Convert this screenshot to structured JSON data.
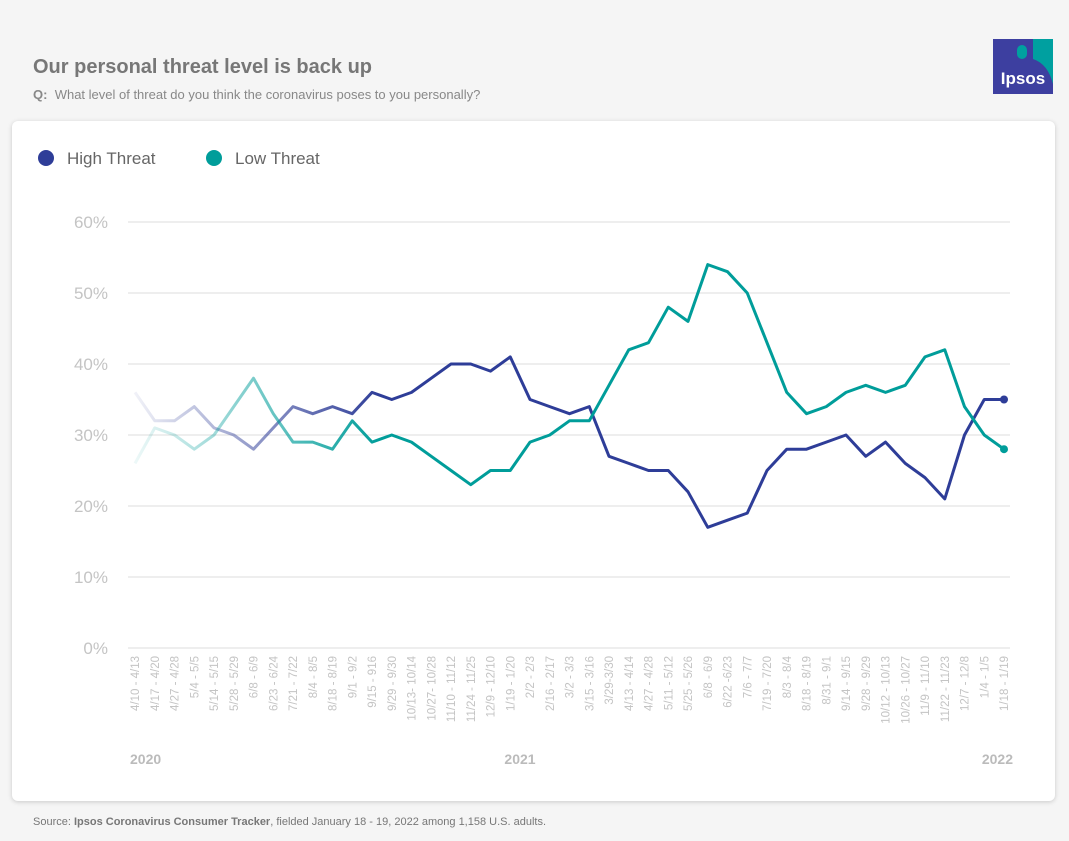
{
  "header": {
    "title": "Our personal threat level is back up",
    "q_label": "Q:",
    "question": "What level of threat do you think the coronavirus poses to you personally?"
  },
  "logo": {
    "text": "Ipsos",
    "colors": {
      "primary": "#3d3fa0",
      "accent": "#00a0a0"
    }
  },
  "source": {
    "label": "Source:",
    "name": "Ipsos Coronavirus Consumer Tracker",
    "rest": ", fielded January 18 - 19, 2022 among 1,158 U.S. adults."
  },
  "chart_data": {
    "type": "line",
    "title": "",
    "ylim": [
      0,
      60
    ],
    "yticks": [
      "0%",
      "10%",
      "20%",
      "30%",
      "40%",
      "50%",
      "60%"
    ],
    "grid": true,
    "legend_placement": "top-left",
    "year_labels": [
      "2020",
      "2021",
      "2022"
    ],
    "categories": [
      "4/10 - 4/13",
      "4/17 - 4/20",
      "4/27 - 4/28",
      "5/4 - 5/5",
      "5/14 - 5/15",
      "5/28 - 5/29",
      "6/8 - 6/9",
      "6/23 - 6/24",
      "7/21 - 7/22",
      "8/4 - 8/5",
      "8/18 - 8/19",
      "9/1 - 9/2",
      "9/15 - 916",
      "9/29 - 9/30",
      "10/13- 10/14",
      "10/27- 10/28",
      "11/10 - 11/12",
      "11/24 - 11/25",
      "12/9 - 12/10",
      "1/19 - 1/20",
      "2/2 - 2/3",
      "2/16 - 2/17",
      "3/2 - 3/3",
      "3/15 - 3/16",
      "3/29-3/30",
      "4/13 - 4/14",
      "4/27 - 4/28",
      "5/11 - 5/12",
      "5/25 - 5/26",
      "6/8 - 6/9",
      "6/22 -6/23",
      "7/6 - 7/7",
      "7/19 - 7/20",
      "8/3 - 8/4",
      "8/18 - 8/19",
      "8/31 - 9/1",
      "9/14 - 9/15",
      "9/28 - 9/29",
      "10/12 - 10/13",
      "10/26 - 10/27",
      "11/9 - 11/10",
      "11/22 - 11/23",
      "12/7 - 12/8",
      "1/4 - 1/5",
      "1/18 - 1/19"
    ],
    "series": [
      {
        "name": "High Threat",
        "color": "#2e3d98",
        "values": [
          36,
          32,
          32,
          34,
          31,
          30,
          28,
          31,
          34,
          33,
          34,
          33,
          36,
          35,
          36,
          38,
          40,
          40,
          39,
          41,
          35,
          34,
          33,
          34,
          27,
          26,
          25,
          25,
          22,
          17,
          18,
          19,
          25,
          28,
          28,
          29,
          30,
          27,
          29,
          26,
          24,
          21,
          30,
          35,
          35
        ]
      },
      {
        "name": "Low Threat",
        "color": "#009d9a",
        "values": [
          26,
          31,
          30,
          28,
          30,
          34,
          38,
          33,
          29,
          29,
          28,
          32,
          29,
          30,
          29,
          27,
          25,
          23,
          25,
          25,
          29,
          30,
          32,
          32,
          37,
          42,
          43,
          48,
          46,
          54,
          53,
          50,
          43,
          36,
          33,
          34,
          36,
          37,
          36,
          37,
          41,
          42,
          34,
          30,
          28
        ]
      }
    ]
  }
}
